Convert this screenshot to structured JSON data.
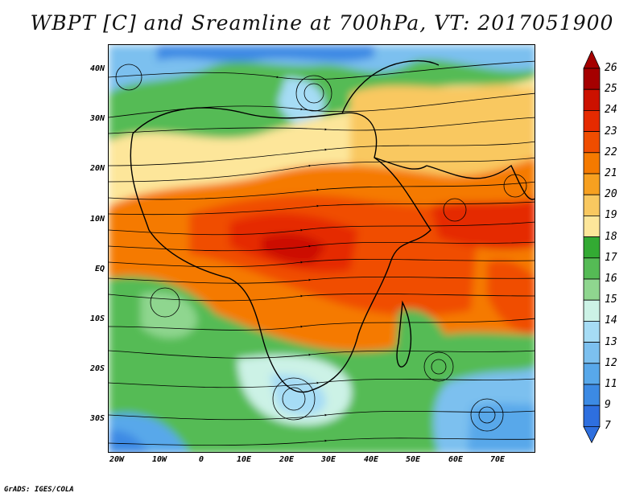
{
  "title": "WBPT [C] and Sreamline at 700hPa, VT: 2017051900",
  "footer": "GrADS: IGES/COLA",
  "lat_labels": [
    "40N",
    "30N",
    "20N",
    "10N",
    "EQ",
    "10S",
    "20S",
    "30S"
  ],
  "lon_labels": [
    "20W",
    "10W",
    "0",
    "10E",
    "20E",
    "30E",
    "40E",
    "50E",
    "60E",
    "70E"
  ],
  "colorbar": {
    "labels": [
      "26",
      "25",
      "24",
      "23",
      "22",
      "21",
      "20",
      "19",
      "18",
      "17",
      "16",
      "15",
      "14",
      "13",
      "12",
      "11",
      "9",
      "7"
    ],
    "colors": [
      "#a50000",
      "#cc1100",
      "#e52a00",
      "#f04d00",
      "#f57a00",
      "#f7a020",
      "#f9c860",
      "#fde69a",
      "#33aa33",
      "#55bb55",
      "#8fd68f",
      "#ccf2e6",
      "#a6dcf5",
      "#7cc0ef",
      "#58a8ea",
      "#3c8ae4",
      "#2e6fdf"
    ]
  },
  "colors": {
    "warm_max": "#e52a00",
    "warm": "#f57a00",
    "mild": "#fde69a",
    "green": "#44aa44",
    "cool": "#7cc0ef"
  },
  "icons": [
    "streamline-arrows",
    "coastline-contours"
  ]
}
